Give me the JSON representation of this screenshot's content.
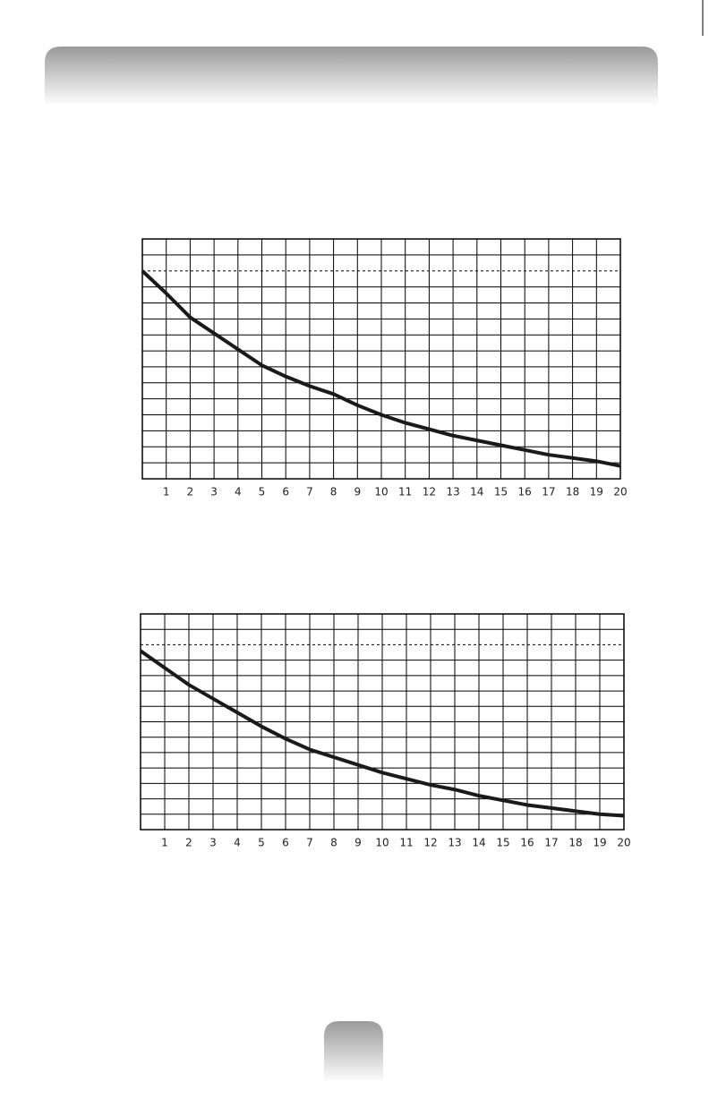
{
  "chart_data": [
    {
      "type": "line",
      "x": [
        0,
        1,
        2,
        3,
        4,
        5,
        6,
        7,
        8,
        9,
        10,
        11,
        12,
        13,
        14,
        15,
        16,
        17,
        18,
        19,
        20
      ],
      "values": [
        13.0,
        11.6,
        10.1,
        9.1,
        8.1,
        7.1,
        6.4,
        5.8,
        5.3,
        4.6,
        4.0,
        3.5,
        3.1,
        2.7,
        2.4,
        2.1,
        1.8,
        1.5,
        1.3,
        1.1,
        0.8
      ],
      "color": "#1a1a1a",
      "xlim": [
        0,
        20
      ],
      "xticks": [
        1,
        2,
        3,
        4,
        5,
        6,
        7,
        8,
        9,
        10,
        11,
        12,
        13,
        14,
        15,
        16,
        17,
        18,
        19,
        20
      ],
      "ylim": [
        0,
        15
      ],
      "yticks": [
        1,
        2,
        3,
        4,
        5,
        6,
        7,
        8,
        9,
        10,
        11,
        12,
        14
      ],
      "reference_line": 13,
      "grid": true
    },
    {
      "type": "line",
      "x": [
        0,
        1,
        2,
        3,
        4,
        5,
        6,
        7,
        8,
        9,
        10,
        11,
        12,
        13,
        14,
        15,
        16,
        17,
        18,
        19,
        20
      ],
      "values": [
        11.6,
        10.5,
        9.4,
        8.5,
        7.6,
        6.7,
        5.9,
        5.2,
        4.7,
        4.2,
        3.7,
        3.3,
        2.9,
        2.6,
        2.2,
        1.9,
        1.6,
        1.4,
        1.2,
        1.0,
        0.9
      ],
      "color": "#1a1a1a",
      "xlim": [
        0,
        20
      ],
      "xticks": [
        1,
        2,
        3,
        4,
        5,
        6,
        7,
        8,
        9,
        10,
        11,
        12,
        13,
        14,
        15,
        16,
        17,
        18,
        19,
        20
      ],
      "ylim": [
        0,
        14
      ],
      "yticks": [
        1,
        2,
        3,
        4,
        5,
        6,
        7,
        8,
        9,
        10,
        11,
        13
      ],
      "reference_line": 12,
      "grid": true
    }
  ]
}
